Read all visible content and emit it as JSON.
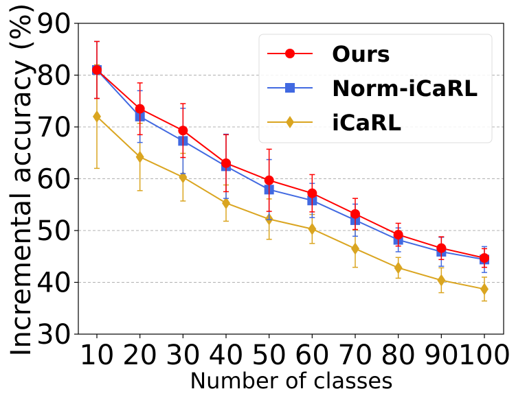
{
  "chart_data": {
    "type": "line",
    "title": "",
    "xlabel": "Number of classes",
    "ylabel": "Incremental accuracy (%)",
    "x": [
      10,
      20,
      30,
      40,
      50,
      60,
      70,
      80,
      90,
      100
    ],
    "x_tick_labels": [
      "10",
      "20",
      "30",
      "40",
      "50",
      "60",
      "70",
      "80",
      "90",
      "100"
    ],
    "ylim": [
      30,
      90
    ],
    "y_ticks": [
      30,
      40,
      50,
      60,
      70,
      80,
      90
    ],
    "y_tick_labels": [
      "30",
      "40",
      "50",
      "60",
      "70",
      "80",
      "90"
    ],
    "grid": "horizontal dashed",
    "legend_position": "top-right",
    "series": [
      {
        "name": "Ours",
        "color": "#ff0000",
        "marker": "circle",
        "values": [
          81.0,
          73.5,
          69.3,
          63.0,
          59.7,
          57.2,
          53.2,
          49.2,
          46.6,
          44.7
        ],
        "errors": [
          5.5,
          5.0,
          5.2,
          5.5,
          6.0,
          3.6,
          3.0,
          2.2,
          2.2,
          1.8
        ]
      },
      {
        "name": "Norm-iCaRL",
        "color": "#4169e1",
        "marker": "square",
        "values": [
          81.0,
          72.0,
          67.3,
          62.4,
          57.9,
          55.8,
          52.0,
          48.2,
          45.9,
          44.4
        ],
        "errors": [
          5.5,
          5.0,
          6.3,
          6.2,
          5.8,
          3.3,
          3.1,
          2.3,
          2.8,
          2.5
        ]
      },
      {
        "name": "iCaRL",
        "color": "#daa520",
        "marker": "diamond",
        "values": [
          72.0,
          64.2,
          60.3,
          55.3,
          52.2,
          50.3,
          46.5,
          42.8,
          40.4,
          38.7
        ],
        "errors": [
          10.0,
          6.5,
          4.6,
          3.5,
          3.9,
          2.8,
          3.6,
          2.0,
          2.4,
          2.3
        ]
      }
    ]
  }
}
